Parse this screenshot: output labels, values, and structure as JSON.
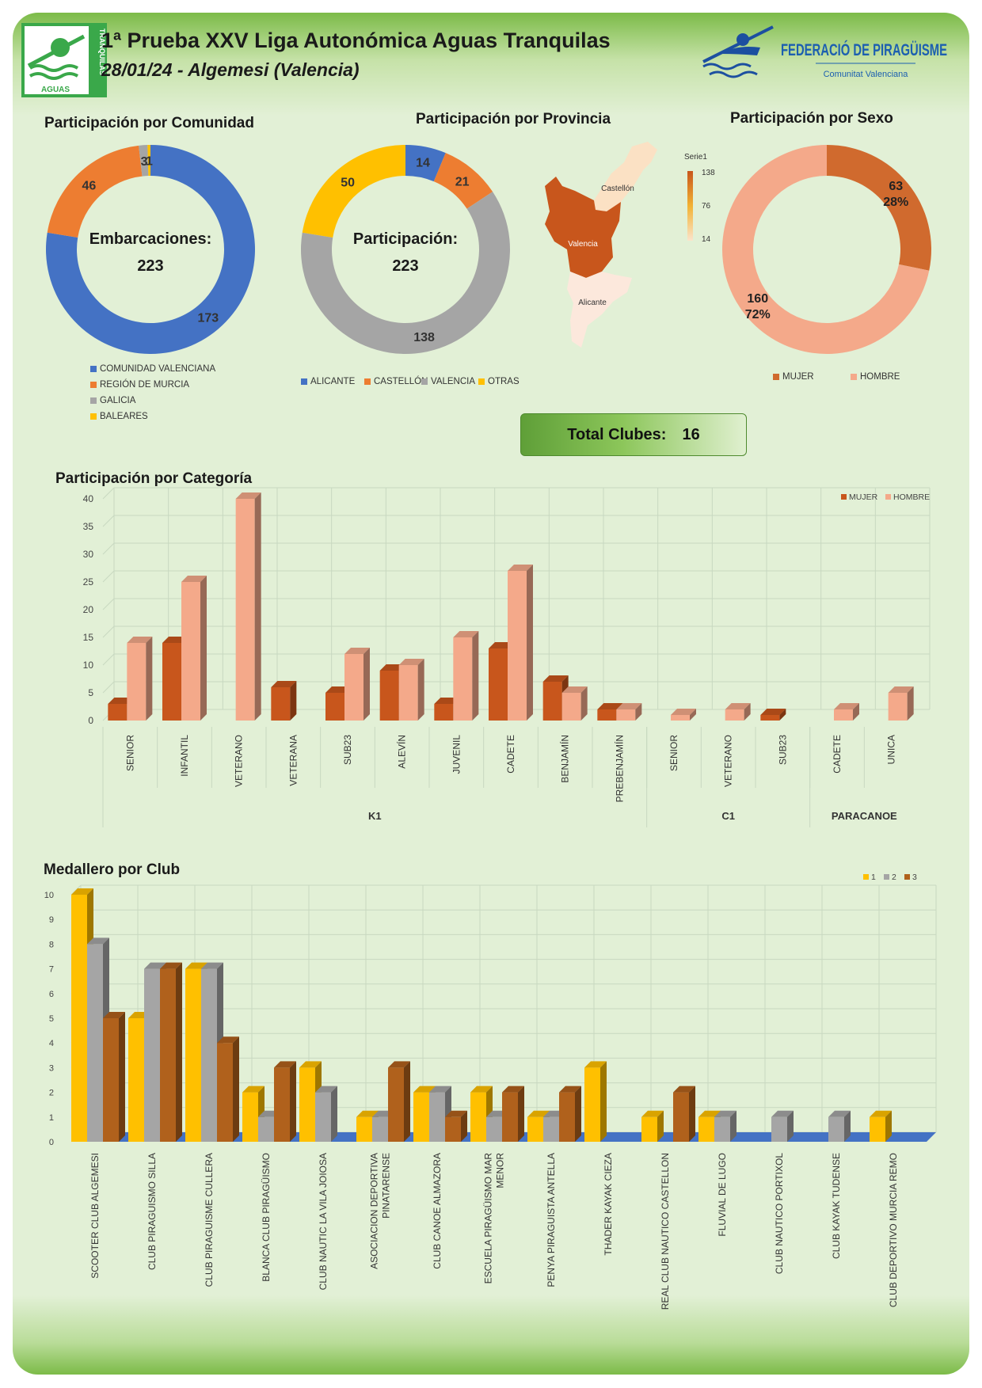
{
  "header": {
    "title": "1ª Prueba XXV Liga Autonómica Aguas Tranquilas",
    "subtitle": "28/01/24 - Algemesi (Valencia)",
    "logo_left_text_1": "AGUAS",
    "logo_left_text_2": "TRANQUILAS",
    "logo_right_text_1": "FEDERACIÓ DE PIRAGÜISME",
    "logo_right_text_2": "Comunitat Valenciana"
  },
  "colors": {
    "blue": "#4472c4",
    "orange": "#ed7d31",
    "gray": "#a5a5a5",
    "yellow": "#ffc000",
    "mujer": "#c8561c",
    "hombre": "#f4a98a",
    "gold": "#ffc000",
    "silver": "#a5a5a5",
    "bronze": "#b0611c"
  },
  "comunidad": {
    "title": "Participación por Comunidad",
    "center_label": "Embarcaciones:",
    "center_value": "223",
    "slices": [
      {
        "label": "COMUNIDAD VALENCIANA",
        "value": 173,
        "color": "#4472c4"
      },
      {
        "label": "REGIÓN DE MURCIA",
        "value": 46,
        "color": "#ed7d31"
      },
      {
        "label": "GALICIA",
        "value": 3,
        "color": "#a5a5a5"
      },
      {
        "label": "BALEARES",
        "value": 1,
        "color": "#ffc000"
      }
    ]
  },
  "provincia": {
    "title": "Participación por Provincia",
    "center_label": "Participación:",
    "center_value": "223",
    "slices": [
      {
        "label": "ALICANTE",
        "value": 14,
        "color": "#4472c4"
      },
      {
        "label": "CASTELLÓN",
        "value": 21,
        "color": "#ed7d31"
      },
      {
        "label": "VALENCIA",
        "value": 138,
        "color": "#a5a5a5"
      },
      {
        "label": "OTRAS",
        "value": 50,
        "color": "#ffc000"
      }
    ]
  },
  "mapa": {
    "series_label": "Serie1",
    "scale_max": "138",
    "scale_mid": "76",
    "scale_min": "14",
    "regions": [
      {
        "name": "Castellón",
        "value": 21
      },
      {
        "name": "Valencia",
        "value": 138
      },
      {
        "name": "Alicante",
        "value": 14
      }
    ]
  },
  "sexo": {
    "title": "Participación por Sexo",
    "slices": [
      {
        "label": "MUJER",
        "value": 63,
        "pct": "28%",
        "color": "#d06a2e"
      },
      {
        "label": "HOMBRE",
        "value": 160,
        "pct": "72%",
        "color": "#f4a98a"
      }
    ]
  },
  "clubs": {
    "label": "Total Clubes:",
    "value": "16"
  },
  "chart_data": [
    {
      "type": "bar",
      "title": "Participación por Categoría",
      "ylim": [
        0,
        40
      ],
      "yticks": [
        0,
        5,
        10,
        15,
        20,
        25,
        30,
        35,
        40
      ],
      "groups": [
        {
          "name": "K1",
          "categories": [
            "SENIOR",
            "INFANTIL",
            "VETERANO",
            "VETERANA",
            "SUB23",
            "ALEVÍN",
            "JUVENIL",
            "CADETE",
            "BENJAMÍN",
            "PREBENJAMÍN"
          ]
        },
        {
          "name": "C1",
          "categories": [
            "SENIOR",
            "VETERANO",
            "SUB23"
          ]
        },
        {
          "name": "PARACANOE",
          "categories": [
            "CADETE",
            "UNICA"
          ]
        }
      ],
      "series": [
        {
          "name": "MUJER",
          "values": [
            3,
            14,
            0,
            6,
            5,
            9,
            3,
            13,
            7,
            2,
            0,
            0,
            1,
            0,
            0
          ]
        },
        {
          "name": "HOMBRE",
          "values": [
            14,
            25,
            40,
            0,
            12,
            10,
            15,
            27,
            5,
            2,
            1,
            2,
            0,
            2,
            5
          ]
        }
      ]
    },
    {
      "type": "bar",
      "title": "Medallero por Club",
      "ylim": [
        0,
        10
      ],
      "yticks": [
        0,
        1,
        2,
        3,
        4,
        5,
        6,
        7,
        8,
        9,
        10
      ],
      "categories": [
        [
          "SCOOTER CLUB ALGEMESI"
        ],
        [
          "CLUB PIRAGUISMO SILLA"
        ],
        [
          "CLUB PIRAGUISME CULLERA"
        ],
        [
          "BLANCA CLUB PIRAGÜISMO"
        ],
        [
          "CLUB NAUTIC LA VILA JOIOSA"
        ],
        [
          "ASOCIACION DEPORTIVA",
          "PINATARENSE"
        ],
        [
          "CLUB CANOE ALMAZORA"
        ],
        [
          "ESCUELA PIRAGÜISMO MAR",
          "MENOR"
        ],
        [
          "PENYA PIRAGUISTA ANTELLA"
        ],
        [
          "THADER KAYAK CIEZA"
        ],
        [
          "REAL CLUB NAUTICO CASTELLON"
        ],
        [
          "FLUVIAL DE LUGO"
        ],
        [
          "CLUB NAUTICO PORTIXOL"
        ],
        [
          "CLUB KAYAK TUDENSE"
        ],
        [
          "CLUB DEPORTIVO MURCIA REMO"
        ]
      ],
      "series": [
        {
          "name": "1",
          "values": [
            10,
            5,
            7,
            2,
            3,
            1,
            2,
            2,
            1,
            3,
            1,
            1,
            0,
            0,
            1
          ]
        },
        {
          "name": "2",
          "values": [
            8,
            7,
            7,
            1,
            2,
            1,
            2,
            1,
            1,
            0,
            0,
            1,
            1,
            1,
            0
          ]
        },
        {
          "name": "3",
          "values": [
            5,
            7,
            4,
            3,
            0,
            3,
            1,
            2,
            2,
            0,
            2,
            0,
            0,
            0,
            0
          ]
        }
      ]
    }
  ]
}
